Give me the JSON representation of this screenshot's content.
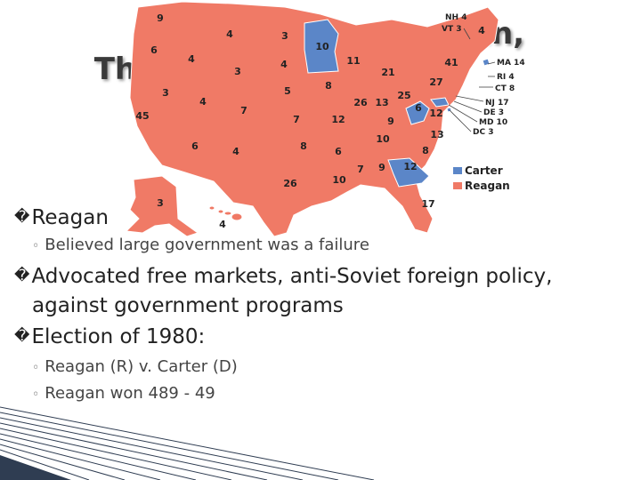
{
  "slide": {
    "title_left": "Th",
    "title_right": "an,",
    "bullets": [
      {
        "mark": "�",
        "text": "Reagan"
      },
      {
        "mark": "�",
        "text": "Advocated free markets, anti-Soviet foreign policy,"
      },
      {
        "mark": "",
        "text": "against government programs"
      },
      {
        "mark": "�",
        "text": "Election of 1980:"
      }
    ],
    "subs": [
      {
        "dot": "◦",
        "text": "Believed large government was a failure"
      },
      {
        "dot": "◦",
        "text": "Reagan (R) v. Carter (D)"
      },
      {
        "dot": "◦",
        "text": "Reagan won 489 - 49"
      }
    ]
  },
  "map": {
    "colors": {
      "reagan": "#f07a66",
      "carter": "#5b86c8",
      "border": "#ffffff"
    },
    "legend": {
      "carter": "Carter",
      "reagan": "Reagan"
    },
    "labels": {
      "wa": "9",
      "or": "6",
      "ca": "45",
      "nv": "3",
      "id": "4",
      "mt": "4",
      "wy": "3",
      "ut": "4",
      "co": "7",
      "az": "6",
      "nm": "4",
      "nd": "3",
      "sd": "4",
      "ne": "5",
      "ks": "7",
      "ok": "8",
      "tx": "26",
      "mn": "10",
      "ia": "8",
      "mo": "12",
      "ar": "6",
      "la": "10",
      "wi": "11",
      "il": "26",
      "mi": "21",
      "in": "13",
      "oh": "25",
      "ky": "9",
      "tn": "10",
      "ms": "7",
      "al": "9",
      "ga": "12",
      "fl": "17",
      "sc": "8",
      "nc": "13",
      "va": "12",
      "wv": "6",
      "pa": "27",
      "ny": "41",
      "me": "4",
      "ak": "3",
      "hi": "4",
      "nh": "NH 4",
      "vt": "VT 3",
      "ma": "MA 14",
      "ri": "RI 4",
      "ct": "CT 8",
      "nj": "NJ 17",
      "de": "DE 3",
      "md": "MD 10",
      "dc": "DC 3"
    }
  }
}
